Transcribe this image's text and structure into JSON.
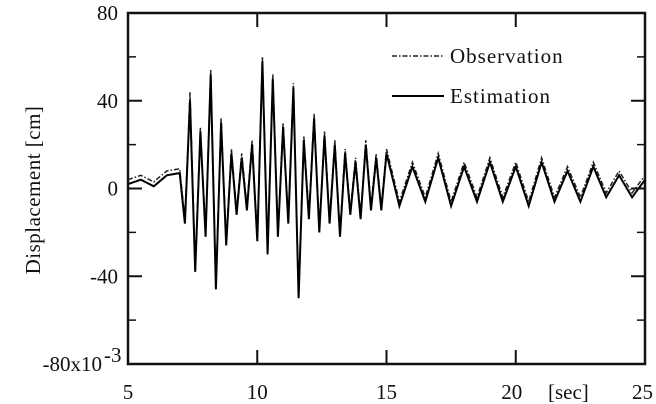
{
  "chart_data": {
    "type": "line",
    "xlabel": "[sec]",
    "ylabel": "Displacement [cm]",
    "xlim": [
      5,
      25
    ],
    "ylim": [
      -80,
      80
    ],
    "y_unit_multiplier": "x10^-3",
    "xticks": [
      5,
      10,
      15,
      20,
      25
    ],
    "xtick_labels": [
      "5",
      "10",
      "15",
      "20",
      "25"
    ],
    "yticks": [
      80,
      40,
      0,
      -40,
      -80
    ],
    "ytick_labels": [
      "80",
      "40",
      "0",
      "-40",
      "-80x10"
    ],
    "ytick_exponent": "-3",
    "grid": false,
    "legend_position": "top-right",
    "line_colors": {
      "observation": "#222222",
      "estimation": "#000000"
    },
    "series": [
      {
        "name": "Observation",
        "style": "dash-dot",
        "x": [
          5.0,
          5.5,
          6.0,
          6.5,
          7.0,
          7.2,
          7.4,
          7.6,
          7.8,
          8.0,
          8.2,
          8.4,
          8.6,
          8.8,
          9.0,
          9.2,
          9.4,
          9.6,
          9.8,
          10.0,
          10.2,
          10.4,
          10.6,
          10.8,
          11.0,
          11.2,
          11.4,
          11.6,
          11.8,
          12.0,
          12.2,
          12.4,
          12.6,
          12.8,
          13.0,
          13.2,
          13.4,
          13.6,
          13.8,
          14.0,
          14.2,
          14.4,
          14.6,
          14.8,
          15.0,
          15.5,
          16.0,
          16.5,
          17.0,
          17.5,
          18.0,
          18.5,
          19.0,
          19.5,
          20.0,
          20.5,
          21.0,
          21.5,
          22.0,
          22.5,
          23.0,
          23.5,
          24.0,
          24.5,
          25.0
        ],
        "y": [
          4,
          6,
          3,
          8,
          9,
          -14,
          44,
          -36,
          28,
          -20,
          54,
          -44,
          32,
          -24,
          18,
          -10,
          16,
          -8,
          22,
          -22,
          60,
          -28,
          52,
          -20,
          30,
          -14,
          48,
          -48,
          24,
          -12,
          34,
          -18,
          26,
          -14,
          22,
          -20,
          18,
          -10,
          14,
          -12,
          22,
          -8,
          16,
          -8,
          18,
          -6,
          12,
          -4,
          16,
          -6,
          12,
          -4,
          14,
          -4,
          12,
          -6,
          14,
          -4,
          10,
          -4,
          12,
          -2,
          8,
          -2,
          6
        ]
      },
      {
        "name": "Estimation",
        "style": "solid",
        "x": [
          5.0,
          5.5,
          6.0,
          6.5,
          7.0,
          7.2,
          7.4,
          7.6,
          7.8,
          8.0,
          8.2,
          8.4,
          8.6,
          8.8,
          9.0,
          9.2,
          9.4,
          9.6,
          9.8,
          10.0,
          10.2,
          10.4,
          10.6,
          10.8,
          11.0,
          11.2,
          11.4,
          11.6,
          11.8,
          12.0,
          12.2,
          12.4,
          12.6,
          12.8,
          13.0,
          13.2,
          13.4,
          13.6,
          13.8,
          14.0,
          14.2,
          14.4,
          14.6,
          14.8,
          15.0,
          15.5,
          16.0,
          16.5,
          17.0,
          17.5,
          18.0,
          18.5,
          19.0,
          19.5,
          20.0,
          20.5,
          21.0,
          21.5,
          22.0,
          22.5,
          23.0,
          23.5,
          24.0,
          24.5,
          25.0
        ],
        "y": [
          2,
          4,
          1,
          6,
          7,
          -16,
          40,
          -38,
          26,
          -22,
          52,
          -46,
          30,
          -26,
          16,
          -12,
          14,
          -10,
          20,
          -24,
          58,
          -30,
          50,
          -22,
          28,
          -16,
          46,
          -50,
          22,
          -14,
          32,
          -20,
          24,
          -16,
          20,
          -22,
          16,
          -12,
          12,
          -14,
          20,
          -10,
          14,
          -10,
          16,
          -8,
          10,
          -6,
          14,
          -8,
          10,
          -6,
          12,
          -6,
          10,
          -8,
          12,
          -6,
          8,
          -6,
          10,
          -4,
          6,
          -4,
          4
        ]
      }
    ]
  }
}
